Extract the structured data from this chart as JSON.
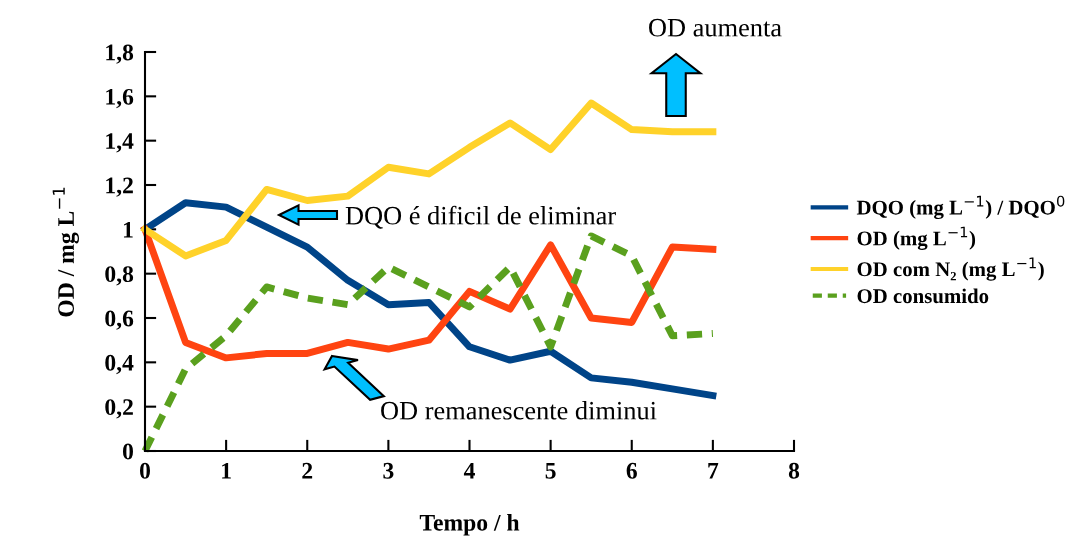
{
  "chart_data": {
    "type": "line",
    "xlabel": "Tempo / h",
    "ylabel": "OD / mg L$^{−1}$",
    "x": [
      0,
      0.5,
      1,
      1.5,
      2,
      2.5,
      3,
      3.5,
      4,
      4.5,
      5,
      5.5,
      6,
      6.5,
      7
    ],
    "series": [
      {
        "name": "DQO (mg L$^{−1}$) / DQO$^{0}$",
        "color": "#004488",
        "line_style": "solid",
        "values": [
          1.0,
          1.12,
          1.1,
          1.01,
          0.92,
          0.77,
          0.66,
          0.67,
          0.47,
          0.41,
          0.45,
          0.33,
          0.31,
          0.28,
          0.25
        ]
      },
      {
        "name": "OD (mg L$^{−1}$)",
        "color": "#ff4411",
        "line_style": "solid",
        "values": [
          1.0,
          0.49,
          0.42,
          0.44,
          0.44,
          0.49,
          0.46,
          0.5,
          0.72,
          0.64,
          0.93,
          0.6,
          0.58,
          0.92,
          0.91
        ]
      },
      {
        "name": "OD com N₂ (mg L$^{−1}$)",
        "color": "#ffd22a",
        "line_style": "solid",
        "values": [
          1.0,
          0.88,
          0.95,
          1.18,
          1.13,
          1.15,
          1.28,
          1.25,
          1.37,
          1.48,
          1.36,
          1.57,
          1.45,
          1.44,
          1.44
        ]
      },
      {
        "name": "OD consumido",
        "color": "#5aa01e",
        "line_style": "dashed",
        "values": [
          0,
          0.37,
          0.52,
          0.74,
          0.69,
          0.66,
          0.83,
          0.74,
          0.65,
          0.83,
          0.47,
          0.97,
          0.88,
          0.52,
          0.53
        ]
      }
    ],
    "xlim": [
      0,
      8
    ],
    "xticks": [
      0,
      1,
      2,
      3,
      4,
      5,
      6,
      7,
      8
    ],
    "ylim": [
      0,
      1.8
    ],
    "yticks": [
      0,
      {
        "value": 0.2,
        "label": "0,2"
      },
      {
        "value": 0.4,
        "label": "0,4"
      },
      {
        "value": 0.6,
        "label": "0,6"
      },
      {
        "value": 0.8,
        "label": "0,8"
      },
      1,
      {
        "value": 1.2,
        "label": "1,2"
      },
      {
        "value": 1.4,
        "label": "1,4"
      },
      {
        "value": 1.6,
        "label": "1,6"
      },
      {
        "value": 1.8,
        "label": "1,8"
      }
    ],
    "annotations": [
      "OD aumenta",
      "DQO é dificil de eliminar",
      "OD remanescente diminui"
    ],
    "legend": "right",
    "grid": false,
    "marker": "none"
  }
}
